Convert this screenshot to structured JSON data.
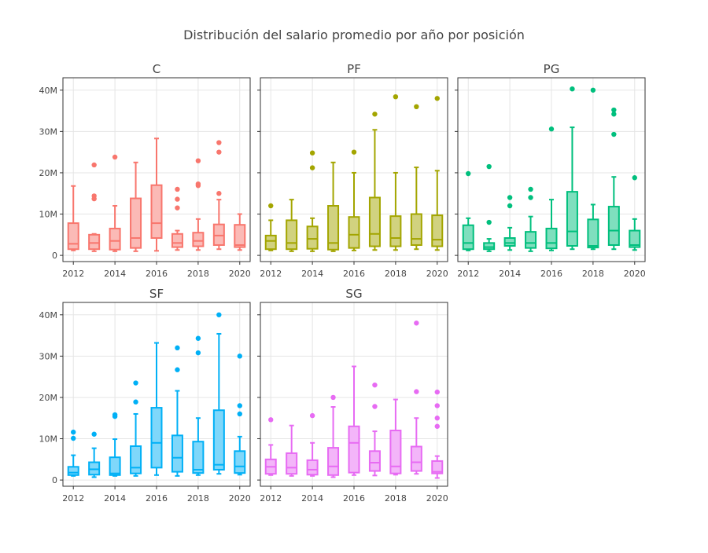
{
  "chart_data": {
    "type": "box",
    "title": "Distribución del salario promedio por año por posición",
    "y_tick_labels": [
      "0",
      "10M",
      "20M",
      "30M",
      "40M"
    ],
    "x_tick_labels": [
      "2012",
      "2014",
      "2016",
      "2018",
      "2020"
    ],
    "ylim": [
      -1500000,
      43000000
    ],
    "xlim": [
      2011.5,
      2020.5
    ],
    "grid": true,
    "value_units": "USD",
    "box_fields": [
      "year",
      "min",
      "q1",
      "median",
      "q3",
      "max"
    ],
    "panels": [
      {
        "name": "C",
        "color": "#F8766D",
        "fill": "#FBBAB6",
        "boxes": [
          [
            2012,
            1200000,
            1500000,
            2800000,
            7800000,
            16800000
          ],
          [
            2013,
            1000000,
            1500000,
            3000000,
            5000000,
            5200000
          ],
          [
            2014,
            1000000,
            1400000,
            3500000,
            6500000,
            12000000
          ],
          [
            2015,
            1000000,
            1800000,
            4200000,
            13800000,
            22500000
          ],
          [
            2016,
            1100000,
            4200000,
            7800000,
            17000000,
            28300000
          ],
          [
            2017,
            1300000,
            2000000,
            3000000,
            5200000,
            6000000
          ],
          [
            2018,
            1300000,
            2200000,
            3500000,
            5500000,
            8800000
          ],
          [
            2019,
            1500000,
            2500000,
            4800000,
            7500000,
            13500000
          ],
          [
            2020,
            1300000,
            2000000,
            2500000,
            7400000,
            10000000
          ]
        ],
        "outliers": [
          [
            2013,
            21900000
          ],
          [
            2013,
            14400000
          ],
          [
            2013,
            13700000
          ],
          [
            2014,
            23800000
          ],
          [
            2017,
            16000000
          ],
          [
            2017,
            13600000
          ],
          [
            2017,
            11500000
          ],
          [
            2018,
            22900000
          ],
          [
            2018,
            17300000
          ],
          [
            2018,
            16900000
          ],
          [
            2019,
            27300000
          ],
          [
            2019,
            25000000
          ],
          [
            2019,
            15000000
          ]
        ]
      },
      {
        "name": "PF",
        "color": "#A3A500",
        "fill": "#D1D27F",
        "boxes": [
          [
            2012,
            1200000,
            1500000,
            3500000,
            4800000,
            8500000
          ],
          [
            2013,
            1000000,
            1500000,
            3000000,
            8500000,
            13500000
          ],
          [
            2014,
            1000000,
            1600000,
            4000000,
            7000000,
            9000000
          ],
          [
            2015,
            1000000,
            1400000,
            3000000,
            12000000,
            22500000
          ],
          [
            2016,
            1200000,
            1800000,
            5000000,
            9300000,
            20000000
          ],
          [
            2017,
            1300000,
            2200000,
            5200000,
            14000000,
            30400000
          ],
          [
            2018,
            1300000,
            2200000,
            4200000,
            9500000,
            20000000
          ],
          [
            2019,
            1500000,
            2500000,
            4000000,
            10000000,
            21300000
          ],
          [
            2020,
            1300000,
            2200000,
            3800000,
            9700000,
            20500000
          ]
        ],
        "outliers": [
          [
            2012,
            12000000
          ],
          [
            2014,
            24800000
          ],
          [
            2014,
            21200000
          ],
          [
            2016,
            25000000
          ],
          [
            2017,
            34200000
          ],
          [
            2018,
            38400000
          ],
          [
            2019,
            36000000
          ],
          [
            2020,
            38000000
          ]
        ]
      },
      {
        "name": "PG",
        "color": "#00BF7D",
        "fill": "#7FDFBE",
        "boxes": [
          [
            2012,
            1200000,
            1500000,
            3000000,
            7300000,
            9000000
          ],
          [
            2013,
            1000000,
            1500000,
            2000000,
            3000000,
            4000000
          ],
          [
            2014,
            1300000,
            2300000,
            3000000,
            4200000,
            6700000
          ],
          [
            2015,
            1000000,
            1800000,
            3000000,
            5700000,
            9400000
          ],
          [
            2016,
            1200000,
            1700000,
            3000000,
            6500000,
            13500000
          ],
          [
            2017,
            1500000,
            2300000,
            5800000,
            15400000,
            31000000
          ],
          [
            2018,
            1500000,
            1900000,
            2300000,
            8700000,
            12300000
          ],
          [
            2019,
            1500000,
            2500000,
            6000000,
            11800000,
            19000000
          ],
          [
            2020,
            1300000,
            2000000,
            2500000,
            6000000,
            8800000
          ]
        ],
        "outliers": [
          [
            2012,
            19800000
          ],
          [
            2013,
            21500000
          ],
          [
            2013,
            8000000
          ],
          [
            2014,
            14000000
          ],
          [
            2014,
            12000000
          ],
          [
            2015,
            16000000
          ],
          [
            2015,
            14000000
          ],
          [
            2016,
            30600000
          ],
          [
            2017,
            40300000
          ],
          [
            2018,
            40000000
          ],
          [
            2019,
            35200000
          ],
          [
            2019,
            34200000
          ],
          [
            2019,
            29300000
          ],
          [
            2020,
            18800000
          ]
        ]
      },
      {
        "name": "SF",
        "color": "#00B0F6",
        "fill": "#7FD7FA",
        "boxes": [
          [
            2012,
            1000000,
            1200000,
            1800000,
            3200000,
            6000000
          ],
          [
            2013,
            700000,
            1300000,
            2600000,
            4300000,
            7700000
          ],
          [
            2014,
            1000000,
            1200000,
            1600000,
            5500000,
            9900000
          ],
          [
            2015,
            1000000,
            1600000,
            3000000,
            8200000,
            16000000
          ],
          [
            2016,
            1200000,
            3000000,
            9000000,
            17500000,
            33200000
          ],
          [
            2017,
            1000000,
            2000000,
            5400000,
            10800000,
            21600000
          ],
          [
            2018,
            1200000,
            1700000,
            2500000,
            9300000,
            15000000
          ],
          [
            2019,
            1500000,
            2500000,
            3700000,
            16900000,
            35400000
          ],
          [
            2020,
            1300000,
            1700000,
            3300000,
            7000000,
            10500000
          ]
        ],
        "outliers": [
          [
            2012,
            11600000
          ],
          [
            2012,
            10100000
          ],
          [
            2013,
            11100000
          ],
          [
            2014,
            15800000
          ],
          [
            2014,
            15400000
          ],
          [
            2015,
            23500000
          ],
          [
            2015,
            18900000
          ],
          [
            2017,
            32000000
          ],
          [
            2017,
            26700000
          ],
          [
            2018,
            34300000
          ],
          [
            2018,
            30800000
          ],
          [
            2019,
            40000000
          ],
          [
            2020,
            30000000
          ],
          [
            2020,
            18000000
          ],
          [
            2020,
            16000000
          ]
        ]
      },
      {
        "name": "SG",
        "color": "#E76BF3",
        "fill": "#F3B5F9",
        "boxes": [
          [
            2012,
            1200000,
            1500000,
            3200000,
            5000000,
            8500000
          ],
          [
            2013,
            1000000,
            1500000,
            3000000,
            6500000,
            13200000
          ],
          [
            2014,
            1000000,
            1300000,
            2500000,
            4800000,
            9000000
          ],
          [
            2015,
            700000,
            1200000,
            3300000,
            7800000,
            17700000
          ],
          [
            2016,
            1200000,
            1800000,
            9000000,
            13000000,
            27500000
          ],
          [
            2017,
            1100000,
            2200000,
            4200000,
            7000000,
            11800000
          ],
          [
            2018,
            1300000,
            1600000,
            3300000,
            12000000,
            19500000
          ],
          [
            2019,
            1500000,
            2200000,
            4300000,
            8100000,
            15000000
          ],
          [
            2020,
            500000,
            1600000,
            2000000,
            4600000,
            5800000
          ]
        ],
        "outliers": [
          [
            2012,
            14600000
          ],
          [
            2014,
            15600000
          ],
          [
            2015,
            20000000
          ],
          [
            2017,
            23000000
          ],
          [
            2017,
            17800000
          ],
          [
            2019,
            38000000
          ],
          [
            2019,
            21400000
          ],
          [
            2020,
            21300000
          ],
          [
            2020,
            18000000
          ],
          [
            2020,
            15000000
          ],
          [
            2020,
            13000000
          ]
        ]
      }
    ]
  }
}
